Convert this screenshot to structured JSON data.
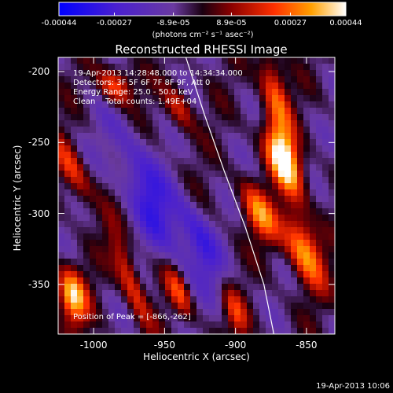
{
  "chart_data": {
    "type": "heatmap",
    "title": "Reconstructed RHESSI Image",
    "xlabel": "Heliocentric X (arcsec)",
    "ylabel": "Heliocentric Y (arcsec)",
    "xlim": [
      -1025,
      -830
    ],
    "ylim": [
      -385,
      -190
    ],
    "xticks": [
      {
        "value": -1000,
        "label": "-1000"
      },
      {
        "value": -950,
        "label": "-950"
      },
      {
        "value": -900,
        "label": "-900"
      },
      {
        "value": -850,
        "label": "-850"
      }
    ],
    "yticks": [
      {
        "value": -200,
        "label": "-200"
      },
      {
        "value": -250,
        "label": "-250"
      },
      {
        "value": -300,
        "label": "-300"
      },
      {
        "value": -350,
        "label": "-350"
      }
    ],
    "colorbar": {
      "min": -0.00044,
      "max": 0.00044,
      "unit": "(photons cm⁻² s⁻¹ asec⁻²)",
      "ticks": [
        {
          "value": -0.00044,
          "label": "-0.00044"
        },
        {
          "value": -0.00027,
          "label": "-0.00027"
        },
        {
          "value": -8.9e-05,
          "label": "-8.9e-05"
        },
        {
          "value": 8.9e-05,
          "label": "8.9e-05"
        },
        {
          "value": 0.00027,
          "label": "0.00027"
        },
        {
          "value": 0.00044,
          "label": "0.00044"
        }
      ]
    },
    "info_lines": [
      "19-Apr-2013 14:28:48.000 to 14:34:34.000",
      "Detectors: 3F 5F 6F 7F 8F 9F, Att 0",
      "Energy Range: 25.0 - 50.0 keV",
      "Clean    Total counts: 1.49E+04"
    ],
    "peak_text": "Position of Peak = [-866,-262]",
    "peak": {
      "x": -866,
      "y": -262
    },
    "limb_curve": [
      {
        "x": -935,
        "y": -190
      },
      {
        "x": -922,
        "y": -230
      },
      {
        "x": -908,
        "y": -270
      },
      {
        "x": -893,
        "y": -310
      },
      {
        "x": -880,
        "y": -350
      },
      {
        "x": -873,
        "y": -385
      }
    ],
    "sources": [
      {
        "x": -866,
        "y": -262,
        "peak": 1.0,
        "sx": 7,
        "sy": 18,
        "angle": -20
      },
      {
        "x": -872,
        "y": -215,
        "peak": 0.55,
        "sx": 6,
        "sy": 22,
        "angle": -15
      },
      {
        "x": -883,
        "y": -300,
        "peak": 0.6,
        "sx": 7,
        "sy": 16,
        "angle": -25
      },
      {
        "x": -852,
        "y": -325,
        "peak": 0.7,
        "sx": 8,
        "sy": 20,
        "angle": -20
      },
      {
        "x": -1015,
        "y": -358,
        "peak": 0.8,
        "sx": 7,
        "sy": 14,
        "angle": -10
      },
      {
        "x": -985,
        "y": -210,
        "peak": 0.55,
        "sx": 8,
        "sy": 10,
        "angle": -30
      },
      {
        "x": -975,
        "y": -345,
        "peak": 0.5,
        "sx": 5,
        "sy": 25,
        "angle": -20
      },
      {
        "x": -1015,
        "y": -270,
        "peak": 0.45,
        "sx": 6,
        "sy": 18,
        "angle": -25
      },
      {
        "x": -940,
        "y": -355,
        "peak": 0.5,
        "sx": 5,
        "sy": 15,
        "angle": -20
      },
      {
        "x": -940,
        "y": -225,
        "peak": 0.4,
        "sx": 6,
        "sy": 12,
        "angle": -20
      },
      {
        "x": -900,
        "y": -370,
        "peak": 0.45,
        "sx": 5,
        "sy": 14,
        "angle": -20
      },
      {
        "x": -960,
        "y": -290,
        "peak": -0.45,
        "sx": 10,
        "sy": 40,
        "angle": -25
      },
      {
        "x": -925,
        "y": -320,
        "peak": -0.4,
        "sx": 7,
        "sy": 25,
        "angle": -25
      }
    ]
  },
  "footer": {
    "timestamp": "19-Apr-2013 10:06"
  }
}
